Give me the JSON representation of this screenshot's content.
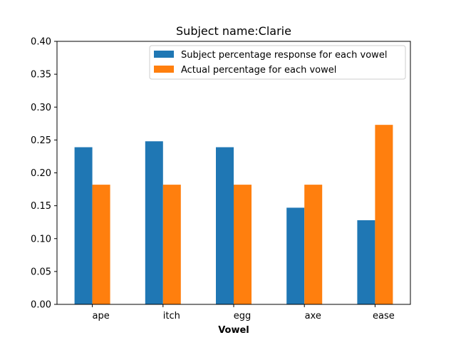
{
  "chart_data": {
    "type": "bar",
    "title": "Subject name:Clarie",
    "xlabel": "Vowel",
    "ylabel": "",
    "categories": [
      "ape",
      "itch",
      "egg",
      "axe",
      "ease"
    ],
    "series": [
      {
        "name": "Subject percentage response for each vowel",
        "color": "#1f77b4",
        "values": [
          0.239,
          0.248,
          0.239,
          0.147,
          0.128
        ]
      },
      {
        "name": "Actual percentage for each vowel",
        "color": "#ff7f0e",
        "values": [
          0.182,
          0.182,
          0.182,
          0.182,
          0.273
        ]
      }
    ],
    "ylim": [
      0,
      0.4
    ],
    "yticks": [
      "0.00",
      "0.05",
      "0.10",
      "0.15",
      "0.20",
      "0.25",
      "0.30",
      "0.35",
      "0.40"
    ],
    "grid": false,
    "legend_position": "top-right"
  }
}
